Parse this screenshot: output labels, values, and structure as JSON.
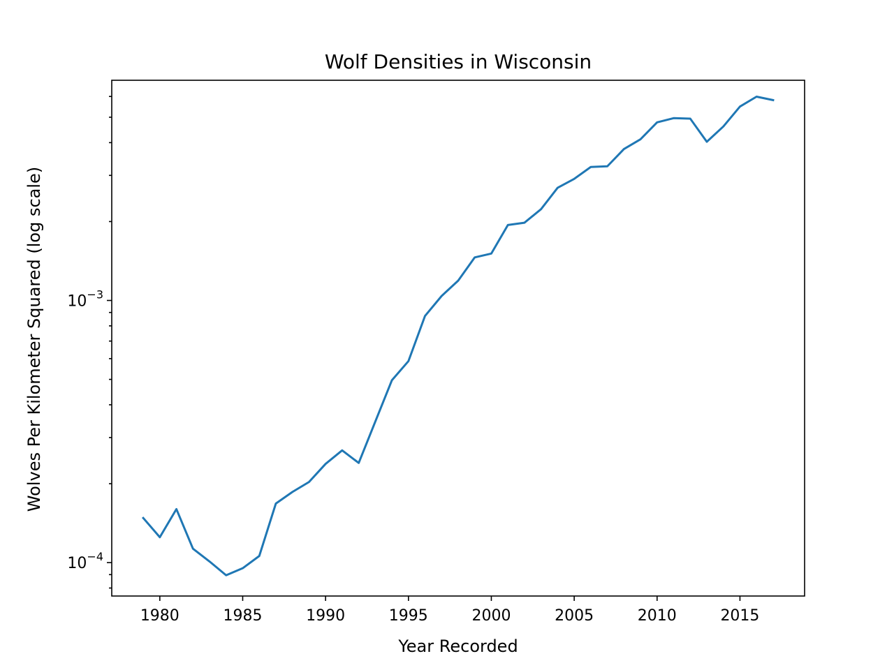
{
  "chart_data": {
    "type": "line",
    "title": "Wolf Densities in Wisconsin",
    "xlabel": "Year Recorded",
    "ylabel": "Wolves Per Kilometer Squared (log scale)",
    "yscale": "log",
    "xlim": [
      1977.1,
      2018.9
    ],
    "ylim": [
      7.457e-05,
      0.006918
    ],
    "grid": false,
    "x_ticks": [
      {
        "value": 1980,
        "label": "1980"
      },
      {
        "value": 1985,
        "label": "1985"
      },
      {
        "value": 1990,
        "label": "1990"
      },
      {
        "value": 1995,
        "label": "1995"
      },
      {
        "value": 2000,
        "label": "2000"
      },
      {
        "value": 2005,
        "label": "2005"
      },
      {
        "value": 2010,
        "label": "2010"
      },
      {
        "value": 2015,
        "label": "2015"
      }
    ],
    "y_ticks": [
      {
        "value": 0.0001,
        "base": "10",
        "exp": "−4"
      },
      {
        "value": 0.001,
        "base": "10",
        "exp": "−3"
      }
    ],
    "series": [
      {
        "color": "#1f77b4",
        "x": [
          1979,
          1980,
          1981,
          1982,
          1983,
          1984,
          1985,
          1986,
          1987,
          1988,
          1989,
          1990,
          1991,
          1992,
          1993,
          1994,
          1995,
          1996,
          1997,
          1998,
          1999,
          2000,
          2001,
          2002,
          2003,
          2004,
          2005,
          2006,
          2007,
          2008,
          2009,
          2010,
          2011,
          2012,
          2013,
          2014,
          2015,
          2016,
          2017
        ],
        "y": [
          0.000148,
          0.000125,
          0.00016,
          0.000113,
          0.000101,
          8.95e-05,
          9.52e-05,
          0.000106,
          0.000168,
          0.000186,
          0.000203,
          0.000238,
          0.000268,
          0.00024,
          0.000345,
          0.000496,
          0.000587,
          0.000873,
          0.00104,
          0.00119,
          0.00146,
          0.00151,
          0.00194,
          0.00198,
          0.00223,
          0.00269,
          0.00291,
          0.00323,
          0.00325,
          0.00378,
          0.00412,
          0.00478,
          0.00496,
          0.00494,
          0.00403,
          0.00461,
          0.00549,
          0.00599,
          0.00581
        ]
      }
    ]
  }
}
